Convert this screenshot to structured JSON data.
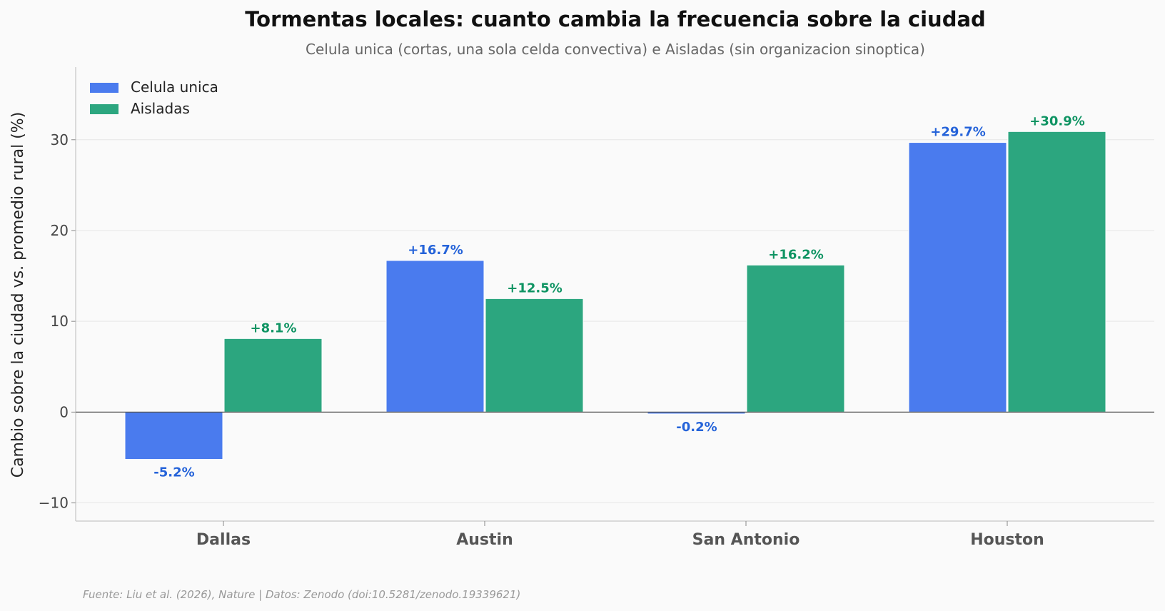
{
  "chart_data": {
    "type": "bar",
    "title": "Tormentas locales: cuanto cambia la frecuencia sobre la ciudad",
    "subtitle": "Celula unica (cortas, una sola celda convectiva) e Aisladas (sin organizacion sinoptica)",
    "xlabel": "",
    "ylabel": "Cambio sobre la ciudad vs. promedio rural (%)",
    "categories": [
      "Dallas",
      "Austin",
      "San Antonio",
      "Houston"
    ],
    "series": [
      {
        "name": "Celula unica",
        "color": "#4a7bee",
        "label_color": "#2563d9",
        "values": [
          -5.2,
          16.7,
          -0.2,
          29.7
        ],
        "labels": [
          "-5.2%",
          "+16.7%",
          "-0.2%",
          "+29.7%"
        ]
      },
      {
        "name": "Aisladas",
        "color": "#2ca67f",
        "label_color": "#0f9463",
        "values": [
          8.1,
          12.5,
          16.2,
          30.9
        ],
        "labels": [
          "+8.1%",
          "+12.5%",
          "+16.2%",
          "+30.9%"
        ]
      }
    ],
    "ylim": [
      -12,
      38
    ],
    "yticks": [
      -10,
      0,
      10,
      20,
      30
    ],
    "ytick_labels": [
      "−10",
      "0",
      "10",
      "20",
      "30"
    ],
    "grid": true,
    "legend_position": "top-left",
    "source": "Fuente: Liu et al. (2026), Nature | Datos: Zenodo (doi:10.5281/zenodo.19339621)"
  }
}
